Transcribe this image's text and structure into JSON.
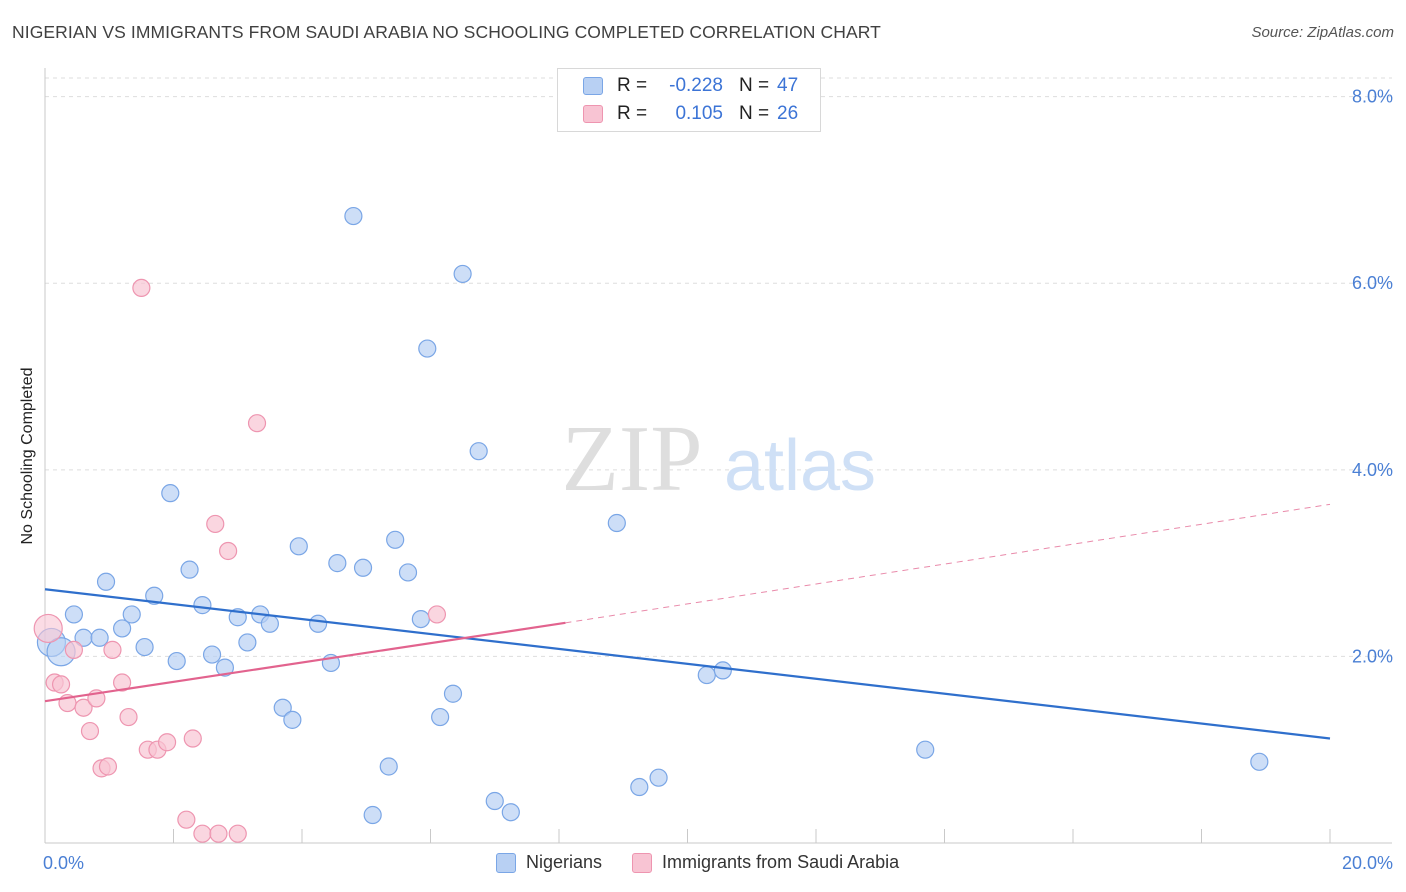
{
  "header": {
    "title": "NIGERIAN VS IMMIGRANTS FROM SAUDI ARABIA NO SCHOOLING COMPLETED CORRELATION CHART",
    "source": "Source: ZipAtlas.com"
  },
  "watermark": {
    "zip": "ZIP",
    "atlas": "atlas"
  },
  "legend_top": {
    "rows": [
      {
        "r_label": "R =",
        "r_value": "-0.228",
        "n_label": "N =",
        "n_value": "47"
      },
      {
        "r_label": "R =",
        "r_value": "0.105",
        "n_label": "N =",
        "n_value": "26"
      }
    ]
  },
  "legend_bottom": {
    "items": [
      "Nigerians",
      "Immigrants from Saudi Arabia"
    ]
  },
  "colors": {
    "nigerians_fill": "#b8d0f3",
    "nigerians_stroke": "#7aa6e6",
    "nigerians_line": "#2f6fcc",
    "saudi_fill": "#f8c4d3",
    "saudi_stroke": "#ee95b0",
    "saudi_line": "#e2638e",
    "axis_text": "#4a7fd4",
    "grid": "#dddddd"
  },
  "chart_data": {
    "type": "scatter",
    "title": "NIGERIAN VS IMMIGRANTS FROM SAUDI ARABIA NO SCHOOLING COMPLETED CORRELATION CHART",
    "xlabel": "",
    "ylabel": "No Schooling Completed",
    "xlim": [
      0,
      20
    ],
    "ylim": [
      0,
      8.2
    ],
    "x_tick_labels": [
      "0.0%",
      "20.0%"
    ],
    "y_ticks": [
      2,
      4,
      6,
      8
    ],
    "y_tick_labels": [
      "2.0%",
      "4.0%",
      "6.0%",
      "8.0%"
    ],
    "grid": true,
    "series": [
      {
        "name": "Nigerians",
        "r": -0.228,
        "n": 47,
        "points": [
          [
            0.1,
            2.15
          ],
          [
            0.25,
            2.05
          ],
          [
            0.45,
            2.45
          ],
          [
            0.6,
            2.2
          ],
          [
            0.85,
            2.2
          ],
          [
            0.95,
            2.8
          ],
          [
            1.2,
            2.3
          ],
          [
            1.35,
            2.45
          ],
          [
            1.55,
            2.1
          ],
          [
            1.7,
            2.65
          ],
          [
            1.95,
            3.75
          ],
          [
            2.05,
            1.95
          ],
          [
            2.25,
            2.93
          ],
          [
            2.45,
            2.55
          ],
          [
            2.6,
            2.02
          ],
          [
            2.8,
            1.88
          ],
          [
            3.0,
            2.42
          ],
          [
            3.15,
            2.15
          ],
          [
            3.35,
            2.45
          ],
          [
            3.5,
            2.35
          ],
          [
            3.7,
            1.45
          ],
          [
            3.85,
            1.32
          ],
          [
            3.95,
            3.18
          ],
          [
            4.25,
            2.35
          ],
          [
            4.45,
            1.93
          ],
          [
            4.55,
            3.0
          ],
          [
            4.8,
            6.72
          ],
          [
            4.95,
            2.95
          ],
          [
            5.1,
            0.3
          ],
          [
            5.35,
            0.82
          ],
          [
            5.45,
            3.25
          ],
          [
            5.65,
            2.9
          ],
          [
            5.85,
            2.4
          ],
          [
            5.95,
            5.3
          ],
          [
            6.15,
            1.35
          ],
          [
            6.35,
            1.6
          ],
          [
            6.5,
            6.1
          ],
          [
            6.75,
            4.2
          ],
          [
            7.0,
            0.45
          ],
          [
            7.25,
            0.33
          ],
          [
            8.9,
            3.43
          ],
          [
            9.25,
            0.6
          ],
          [
            9.55,
            0.7
          ],
          [
            10.3,
            1.8
          ],
          [
            10.55,
            1.85
          ],
          [
            13.7,
            1.0
          ],
          [
            18.9,
            0.87
          ]
        ],
        "trend": {
          "x": [
            0,
            20
          ],
          "y": [
            2.72,
            1.12
          ]
        }
      },
      {
        "name": "Immigrants from Saudi Arabia",
        "r": 0.105,
        "n": 26,
        "points": [
          [
            0.05,
            2.3
          ],
          [
            0.15,
            1.72
          ],
          [
            0.25,
            1.7
          ],
          [
            0.35,
            1.5
          ],
          [
            0.45,
            2.07
          ],
          [
            0.6,
            1.45
          ],
          [
            0.7,
            1.2
          ],
          [
            0.8,
            1.55
          ],
          [
            0.88,
            0.8
          ],
          [
            0.98,
            0.82
          ],
          [
            1.05,
            2.07
          ],
          [
            1.2,
            1.72
          ],
          [
            1.3,
            1.35
          ],
          [
            1.5,
            5.95
          ],
          [
            1.6,
            1.0
          ],
          [
            1.75,
            1.0
          ],
          [
            1.9,
            1.08
          ],
          [
            2.2,
            0.25
          ],
          [
            2.3,
            1.12
          ],
          [
            2.45,
            0.1
          ],
          [
            2.65,
            3.42
          ],
          [
            2.7,
            0.1
          ],
          [
            2.85,
            3.13
          ],
          [
            3.0,
            0.1
          ],
          [
            3.3,
            4.5
          ],
          [
            6.1,
            2.45
          ]
        ],
        "trend_solid": {
          "x": [
            0,
            8.1
          ],
          "y": [
            1.52,
            2.36
          ]
        },
        "trend_dashed": {
          "x": [
            8.1,
            20
          ],
          "y": [
            2.36,
            3.63
          ]
        }
      }
    ]
  }
}
